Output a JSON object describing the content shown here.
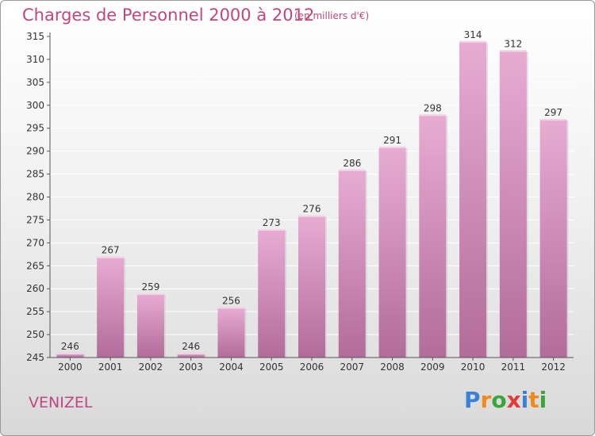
{
  "chart_title": "Charges de Personnel 2000 à 2012",
  "chart_subtitle": "(en milliers d'€)",
  "commune": "VENIZEL",
  "logo_text": "Proxiti",
  "colors": {
    "title": "#c0477d",
    "bar_top": "#e6a9d0",
    "bar_bottom": "#b06a98",
    "axis": "#444444",
    "grid": "#ffffff"
  },
  "chart_data": {
    "type": "bar",
    "title": "Charges de Personnel 2000 à 2012",
    "subtitle": "(en milliers d'€)",
    "categories": [
      "2000",
      "2001",
      "2002",
      "2003",
      "2004",
      "2005",
      "2006",
      "2007",
      "2008",
      "2009",
      "2010",
      "2011",
      "2012"
    ],
    "values": [
      246,
      267,
      259,
      246,
      256,
      273,
      276,
      286,
      291,
      298,
      314,
      312,
      297
    ],
    "ylim": [
      245,
      315
    ],
    "yticks": [
      245,
      250,
      255,
      260,
      265,
      270,
      275,
      280,
      285,
      290,
      295,
      300,
      305,
      310,
      315
    ],
    "grid": true,
    "xlabel": "",
    "ylabel": ""
  }
}
